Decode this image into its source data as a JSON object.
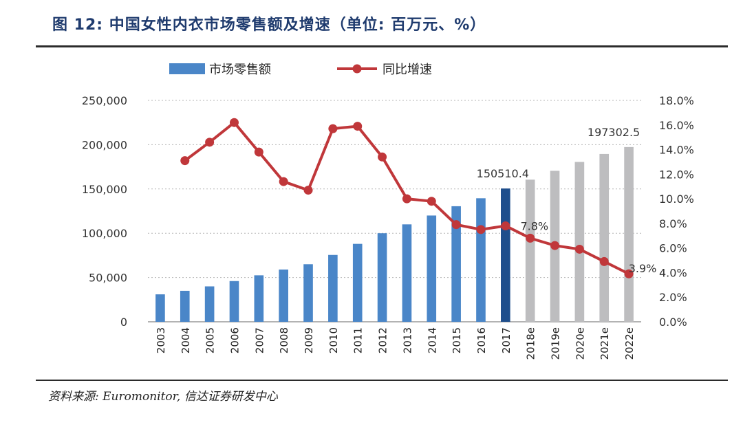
{
  "header": {
    "title": "图 12: 中国女性内衣市场零售额及增速（单位: 百万元、%）"
  },
  "footer": {
    "source": "资料来源: Euromonitor, 信达证券研发中心"
  },
  "colors": {
    "bar_actual": "#4a86c8",
    "bar_highlight": "#1f4e8c",
    "bar_estimate": "#bdbdbf",
    "line": "#c0373a"
  },
  "chart_data": {
    "type": "bar",
    "title": "",
    "categories": [
      "2003",
      "2004",
      "2005",
      "2006",
      "2007",
      "2008",
      "2009",
      "2010",
      "2011",
      "2012",
      "2013",
      "2014",
      "2015",
      "2016",
      "2017",
      "2018e",
      "2019e",
      "2020e",
      "2021e",
      "2022e"
    ],
    "series": [
      {
        "name": "市场零售额",
        "axis": "left",
        "type": "bar",
        "values": [
          31000,
          35000,
          40000,
          46000,
          52500,
          59000,
          65000,
          75500,
          88000,
          100000,
          110000,
          120000,
          130500,
          139500,
          150510.4,
          160500,
          170500,
          180500,
          189500,
          197302.5
        ]
      },
      {
        "name": "同比增速",
        "axis": "right",
        "type": "line",
        "values": [
          null,
          13.1,
          14.6,
          16.2,
          13.8,
          11.4,
          10.7,
          15.7,
          15.9,
          13.4,
          10.0,
          9.8,
          7.9,
          7.5,
          7.8,
          6.8,
          6.2,
          5.9,
          4.9,
          3.9
        ]
      }
    ],
    "ylim_left": [
      0,
      250000
    ],
    "yticks_left": [
      "0",
      "50,000",
      "100,000",
      "150,000",
      "200,000",
      "250,000"
    ],
    "ylim_right": [
      0,
      18
    ],
    "yticks_right": [
      "0.0%",
      "2.0%",
      "4.0%",
      "6.0%",
      "8.0%",
      "10.0%",
      "12.0%",
      "14.0%",
      "16.0%",
      "18.0%"
    ],
    "annotations": [
      {
        "text": "150510.4",
        "category": "2017",
        "series": "bar"
      },
      {
        "text": "197302.5",
        "category": "2022e",
        "series": "bar"
      },
      {
        "text": "7.8%",
        "category": "2017",
        "series": "line"
      },
      {
        "text": "3.9%",
        "category": "2022e",
        "series": "line"
      }
    ],
    "legend": {
      "position": "top-left",
      "items": [
        "市场零售额",
        "同比增速"
      ]
    },
    "grid": true
  }
}
